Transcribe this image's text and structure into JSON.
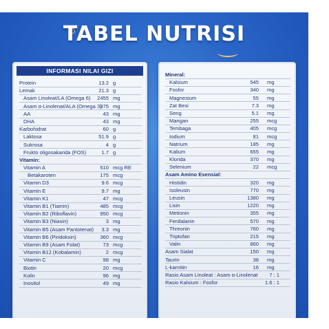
{
  "title": "TABEL NUTRISI",
  "left": {
    "header": "INFORMASI NILAI GIZI",
    "rows": [
      {
        "label": "Protein",
        "value": "13.2",
        "unit": "g",
        "indent": 0
      },
      {
        "label": "Lemak",
        "value": "21.3",
        "unit": "g",
        "indent": 0
      },
      {
        "label": "Asam Linoleat/LA (Omega 6)",
        "value": "2455",
        "unit": "mg",
        "indent": 1
      },
      {
        "label": "Asam α-Linolenat/ALA (Omega 3)",
        "value": "375",
        "unit": "mg",
        "indent": 1
      },
      {
        "label": "AA",
        "value": "43",
        "unit": "mg",
        "indent": 1
      },
      {
        "label": "DHA",
        "value": "43",
        "unit": "mg",
        "indent": 1
      },
      {
        "label": "Karbohidrat",
        "value": "60",
        "unit": "g",
        "indent": 0
      },
      {
        "label": "Laktosa",
        "value": "51.9",
        "unit": "g",
        "indent": 1
      },
      {
        "label": "Sukrosa",
        "value": "4",
        "unit": "g",
        "indent": 1
      },
      {
        "label": "Frukto oligosakarida (FOS)",
        "value": "1.7",
        "unit": "g",
        "indent": 1
      },
      {
        "label": "Vitamin:",
        "value": "",
        "unit": "",
        "indent": 0,
        "section": true
      },
      {
        "label": "Vitamin A",
        "value": "510",
        "unit": "mcg RE",
        "indent": 1
      },
      {
        "label": "Betakaroten",
        "value": "175",
        "unit": "mcg",
        "indent": 2
      },
      {
        "label": "Vitamin D3",
        "value": "9.6",
        "unit": "mcg",
        "indent": 1
      },
      {
        "label": "Vitamin E",
        "value": "9.7",
        "unit": "mg",
        "indent": 1
      },
      {
        "label": "Vitamin K1",
        "value": "47",
        "unit": "mcg",
        "indent": 1
      },
      {
        "label": "Vitamin B1 (Tiamin)",
        "value": "485",
        "unit": "mcg",
        "indent": 1
      },
      {
        "label": "Vitamin B2 (Riboflavin)",
        "value": "950",
        "unit": "mcg",
        "indent": 1
      },
      {
        "label": "Vitamin B3 (Niasin)",
        "value": "3",
        "unit": "mg",
        "indent": 1
      },
      {
        "label": "Vitamin B5 (Asam Pantotenat)",
        "value": "3.3",
        "unit": "mg",
        "indent": 1
      },
      {
        "label": "Vitamin B6 (Piridoksin)",
        "value": "360",
        "unit": "mcg",
        "indent": 1
      },
      {
        "label": "Vitamin B9 (Asam Folat)",
        "value": "73",
        "unit": "mcg",
        "indent": 1
      },
      {
        "label": "Vitamin B12 (Kobalamin)",
        "value": "2",
        "unit": "mcg",
        "indent": 1
      },
      {
        "label": "Vitamin C",
        "value": "98",
        "unit": "mg",
        "indent": 1
      },
      {
        "label": "Biotin",
        "value": "20",
        "unit": "mcg",
        "indent": 1
      },
      {
        "label": "Kolin",
        "value": "96",
        "unit": "mg",
        "indent": 1
      },
      {
        "label": "Inositol",
        "value": "49",
        "unit": "mg",
        "indent": 1
      }
    ]
  },
  "right": {
    "rows": [
      {
        "label": "Mineral:",
        "value": "",
        "unit": "",
        "indent": 0,
        "section": true
      },
      {
        "label": "Kalsium",
        "value": "545",
        "unit": "mg",
        "indent": 1
      },
      {
        "label": "Fosfor",
        "value": "340",
        "unit": "mg",
        "indent": 1
      },
      {
        "label": "Magnesium",
        "value": "55",
        "unit": "mg",
        "indent": 1
      },
      {
        "label": "Zat Besi",
        "value": "7.3",
        "unit": "mg",
        "indent": 1
      },
      {
        "label": "Seng",
        "value": "5.1",
        "unit": "mg",
        "indent": 1
      },
      {
        "label": "Mangan",
        "value": "255",
        "unit": "mcg",
        "indent": 1
      },
      {
        "label": "Tembaga",
        "value": "405",
        "unit": "mcg",
        "indent": 1
      },
      {
        "label": "Iodium",
        "value": "81",
        "unit": "mcg",
        "indent": 1
      },
      {
        "label": "Natrium",
        "value": "185",
        "unit": "mg",
        "indent": 1
      },
      {
        "label": "Kalium",
        "value": "655",
        "unit": "mg",
        "indent": 1
      },
      {
        "label": "Klorida",
        "value": "370",
        "unit": "mg",
        "indent": 1
      },
      {
        "label": "Selenium",
        "value": "22",
        "unit": "mcg",
        "indent": 1
      },
      {
        "label": "Asam Amino Esensial:",
        "value": "",
        "unit": "",
        "indent": 0,
        "section": true
      },
      {
        "label": "Histidin",
        "value": "320",
        "unit": "mg",
        "indent": 1
      },
      {
        "label": "Isoleusin",
        "value": "770",
        "unit": "mg",
        "indent": 1
      },
      {
        "label": "Leusin",
        "value": "1380",
        "unit": "mg",
        "indent": 1
      },
      {
        "label": "Lisin",
        "value": "1220",
        "unit": "mg",
        "indent": 1
      },
      {
        "label": "Metionin",
        "value": "355",
        "unit": "mg",
        "indent": 1
      },
      {
        "label": "Fenilalanin",
        "value": "570",
        "unit": "mg",
        "indent": 1
      },
      {
        "label": "Threonin",
        "value": "760",
        "unit": "mg",
        "indent": 1
      },
      {
        "label": "Triptofan",
        "value": "215",
        "unit": "mg",
        "indent": 1
      },
      {
        "label": "Valin",
        "value": "860",
        "unit": "mg",
        "indent": 1
      },
      {
        "label": "Asam Sialat",
        "value": "150",
        "unit": "mg",
        "indent": 0
      },
      {
        "label": "Taurin",
        "value": "38",
        "unit": "mg",
        "indent": 0
      },
      {
        "label": "L-karnitin",
        "value": "16",
        "unit": "mg",
        "indent": 0
      },
      {
        "label": "Rasio Asam Linoleat : Asam α-Linolenat",
        "value": "",
        "unit": "",
        "ratio": "7 : 1",
        "indent": 0
      },
      {
        "label": "Rasio Kalsium : Fosfor",
        "value": "",
        "unit": "",
        "ratio": "1.6 : 1",
        "indent": 0
      }
    ]
  },
  "colors": {
    "background": "#2a66c8",
    "header": "#1e3f8f",
    "text": "#1e3578",
    "card": "#eef2f7"
  }
}
